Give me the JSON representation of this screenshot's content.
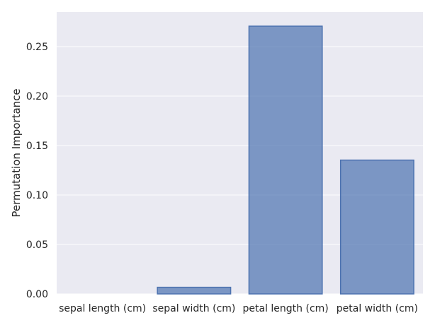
{
  "chart_data": {
    "type": "bar",
    "title": "",
    "xlabel": "",
    "ylabel": "Permutation Importance",
    "categories": [
      "sepal length (cm)",
      "sepal width (cm)",
      "petal length (cm)",
      "petal width (cm)"
    ],
    "values": [
      0.0,
      0.0067,
      0.2707,
      0.1353
    ],
    "ylim": [
      0,
      0.285
    ],
    "yticks": [
      "0.00",
      "0.05",
      "0.10",
      "0.15",
      "0.20",
      "0.25"
    ],
    "grid": true,
    "colors": {
      "background": "#eaeaf2",
      "grid": "#ffffff",
      "bar_fill": "#4c72b0",
      "bar_edge": "#4c72b0"
    }
  }
}
